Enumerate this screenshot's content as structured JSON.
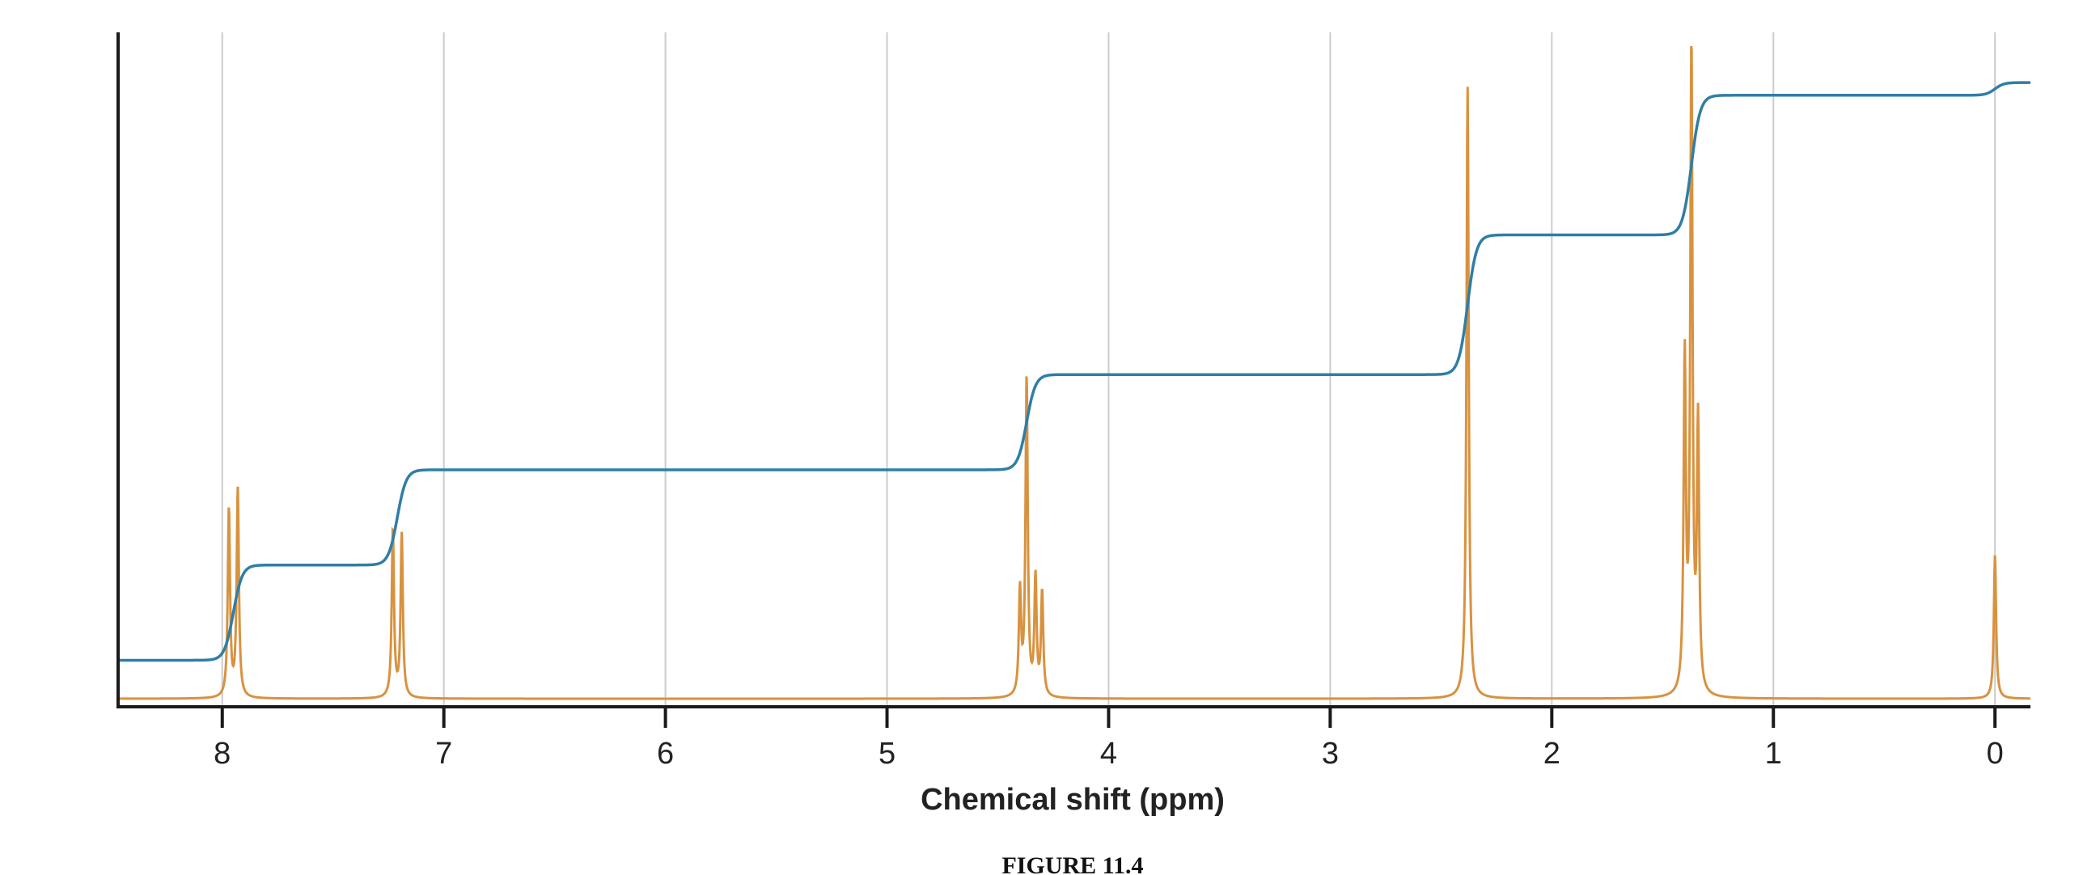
{
  "figure_caption": "FIGURE 11.4",
  "colors": {
    "spectrum": "#d8923f",
    "integral": "#2f7ea6",
    "grid": "#cccccc",
    "axis": "#1a1a1a"
  },
  "chart_data": {
    "type": "line",
    "title": "",
    "xlabel": "Chemical shift (ppm)",
    "ylabel": "",
    "xlim": [
      8.47,
      -0.16
    ],
    "x_reversed": true,
    "ylim": [
      0,
      1
    ],
    "grid": true,
    "legend": "none",
    "x_ticks": [
      8,
      7,
      6,
      5,
      4,
      3,
      2,
      1,
      0
    ],
    "x_tick_labels": [
      "8",
      "7",
      "6",
      "5",
      "4",
      "3",
      "2",
      "1",
      "0"
    ],
    "peaks": [
      {
        "x": 7.97,
        "height": 0.29
      },
      {
        "x": 7.93,
        "height": 0.32
      },
      {
        "x": 7.23,
        "height": 0.26
      },
      {
        "x": 7.19,
        "height": 0.25
      },
      {
        "x": 4.4,
        "height": 0.16
      },
      {
        "x": 4.37,
        "height": 0.49
      },
      {
        "x": 4.33,
        "height": 0.18
      },
      {
        "x": 4.3,
        "height": 0.16
      },
      {
        "x": 2.38,
        "height": 0.94
      },
      {
        "x": 1.4,
        "height": 0.51
      },
      {
        "x": 1.37,
        "height": 1.0
      },
      {
        "x": 1.34,
        "height": 0.41
      },
      {
        "x": 0.0,
        "height": 0.22
      }
    ],
    "integral_steps": [
      {
        "x": 7.95,
        "from": 0.03,
        "to": 0.18
      },
      {
        "x": 7.21,
        "from": 0.19,
        "to": 0.34
      },
      {
        "x": 4.37,
        "from": 0.36,
        "to": 0.51
      },
      {
        "x": 2.38,
        "from": 0.53,
        "to": 0.75
      },
      {
        "x": 1.37,
        "from": 0.77,
        "to": 0.99
      },
      {
        "x": 0.0,
        "from": 0.99,
        "to": 1.01
      }
    ]
  }
}
